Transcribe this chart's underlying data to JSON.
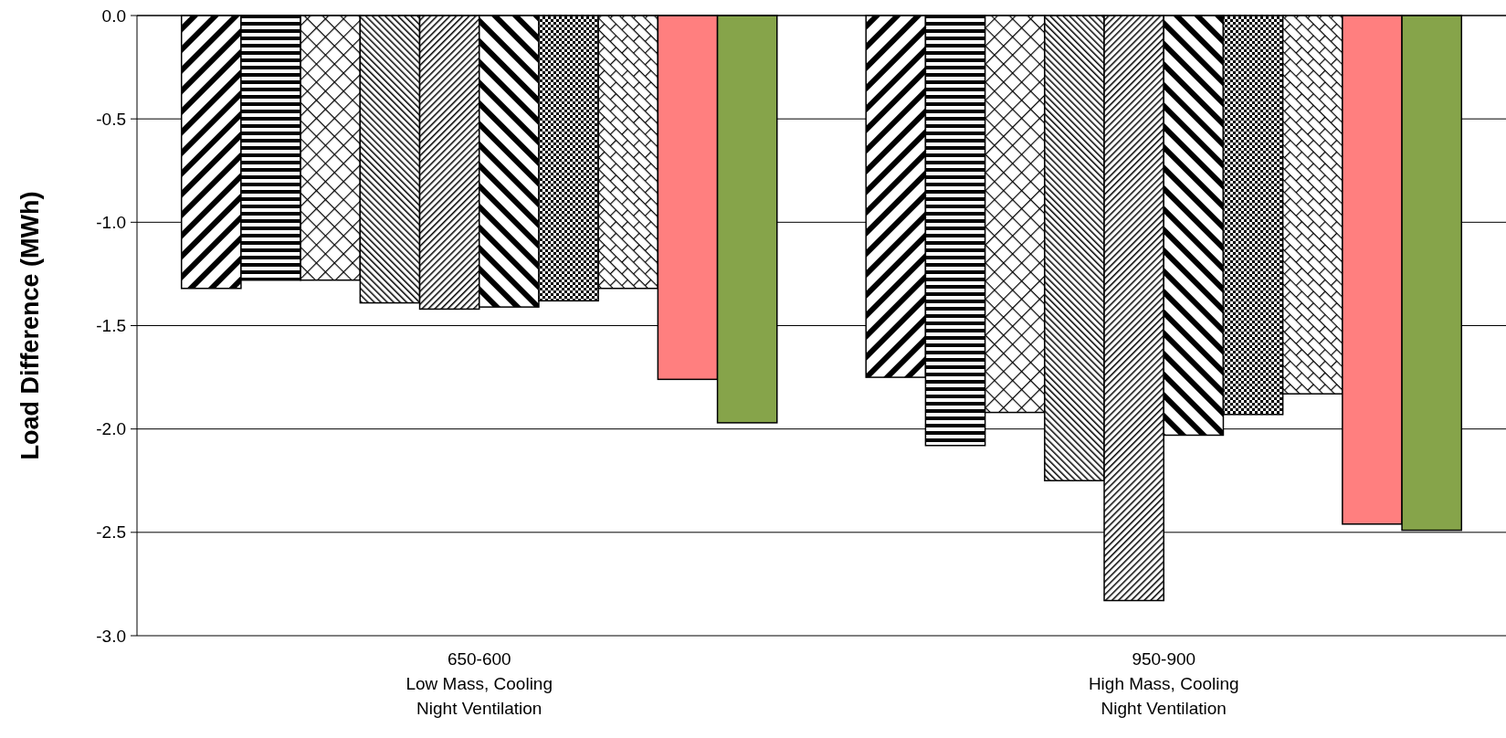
{
  "chart_data": {
    "type": "bar",
    "ylabel": "Load Difference (MWh)",
    "categories": [
      "650-600\nLow Mass, Cooling\nNight Ventilation",
      "950-900\nHigh Mass, Cooling\nNight Ventilation"
    ],
    "series": [
      {
        "color": "#000000",
        "values": [
          -1.32,
          -1.75
        ]
      },
      {
        "color": "#000000",
        "values": [
          -1.28,
          -2.08
        ]
      },
      {
        "color": "#000000",
        "values": [
          -1.28,
          -1.92
        ]
      },
      {
        "color": "#000000",
        "values": [
          -1.39,
          -2.25
        ]
      },
      {
        "color": "#000000",
        "values": [
          -1.42,
          -2.83
        ]
      },
      {
        "color": "#000000",
        "values": [
          -1.41,
          -2.03
        ]
      },
      {
        "color": "#000000",
        "values": [
          -1.38,
          -1.93
        ]
      },
      {
        "color": "#000000",
        "values": [
          -1.32,
          -1.83
        ]
      },
      {
        "color": "#ff7f7f",
        "values": [
          -1.76,
          -2.46
        ]
      },
      {
        "color": "#86a44a",
        "values": [
          -1.97,
          -2.49
        ]
      }
    ],
    "ylim": [
      -3,
      0
    ],
    "yticks": [
      {
        "value": -3,
        "label": "-3.0"
      },
      {
        "value": -2.5,
        "label": "-2.5"
      },
      {
        "value": -2,
        "label": "-2.0"
      },
      {
        "value": -1.5,
        "label": "-1.5"
      },
      {
        "value": -1,
        "label": "-1.0"
      },
      {
        "value": -0.5,
        "label": "-0.5"
      },
      {
        "value": 0,
        "label": "0.0"
      }
    ],
    "grid": "y"
  }
}
